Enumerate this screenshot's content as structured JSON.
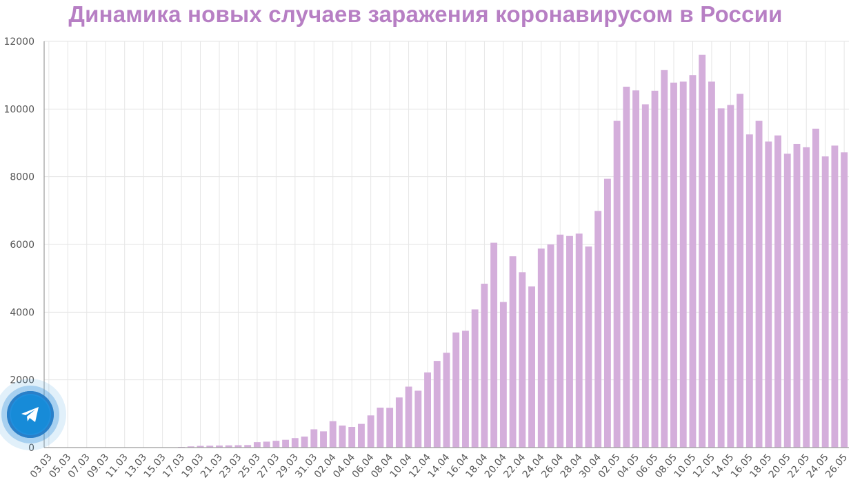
{
  "chart_data": {
    "type": "bar",
    "title": "Динамика новых случаев заражения коронавирусом в России",
    "xlabel": "",
    "ylabel": "",
    "ylim": [
      0,
      12000
    ],
    "yticks": [
      "0",
      "2000",
      "4000",
      "6000",
      "8000",
      "10000",
      "12000"
    ],
    "grid": true,
    "bar_color": "#d4aedb",
    "title_color": "#b77fc4",
    "categories": [
      "03.03",
      "04.03",
      "05.03",
      "06.03",
      "07.03",
      "08.03",
      "09.03",
      "10.03",
      "11.03",
      "12.03",
      "13.03",
      "14.03",
      "15.03",
      "16.03",
      "17.03",
      "18.03",
      "19.03",
      "20.03",
      "21.03",
      "22.03",
      "23.03",
      "24.03",
      "25.03",
      "26.03",
      "27.03",
      "28.03",
      "29.03",
      "30.03",
      "31.03",
      "01.04",
      "02.04",
      "03.04",
      "04.04",
      "05.04",
      "06.04",
      "07.04",
      "08.04",
      "09.04",
      "10.04",
      "11.04",
      "12.04",
      "13.04",
      "14.04",
      "15.04",
      "16.04",
      "17.04",
      "18.04",
      "19.04",
      "20.04",
      "21.04",
      "22.04",
      "23.04",
      "24.04",
      "25.04",
      "26.04",
      "27.04",
      "28.04",
      "29.04",
      "30.04",
      "01.05",
      "02.05",
      "03.05",
      "04.05",
      "05.05",
      "06.05",
      "07.05",
      "08.05",
      "09.05",
      "10.05",
      "11.05",
      "12.05",
      "13.05",
      "14.05",
      "15.05",
      "16.05",
      "17.05",
      "18.05",
      "19.05",
      "20.05",
      "21.05",
      "22.05",
      "23.05",
      "24.05",
      "25.05",
      "26.05"
    ],
    "x_tick_labels": [
      "03.03",
      "05.03",
      "07.03",
      "09.03",
      "11.03",
      "13.03",
      "15.03",
      "17.03",
      "19.03",
      "21.03",
      "23.03",
      "25.03",
      "27.03",
      "29.03",
      "31.03",
      "02.04",
      "04.04",
      "06.04",
      "08.04",
      "10.04",
      "12.04",
      "14.04",
      "16.04",
      "18.04",
      "20.04",
      "22.04",
      "24.04",
      "26.04",
      "28.04",
      "30.04",
      "02.05",
      "04.05",
      "06.05",
      "08.05",
      "10.05",
      "12.05",
      "14.05",
      "16.05",
      "18.05",
      "20.05",
      "22.05",
      "24.05",
      "26.05"
    ],
    "values": [
      0,
      0,
      0,
      0,
      0,
      0,
      0,
      0,
      0,
      0,
      0,
      0,
      0,
      0,
      20,
      35,
      50,
      55,
      60,
      65,
      70,
      75,
      160,
      175,
      200,
      230,
      280,
      325,
      540,
      480,
      780,
      650,
      610,
      700,
      950,
      1180,
      1175,
      1480,
      1800,
      1680,
      2220,
      2560,
      2800,
      3400,
      3450,
      4080,
      4840,
      6050,
      4300,
      5650,
      5180,
      4760,
      5880,
      6000,
      6290,
      6250,
      6320,
      5940,
      6990,
      7940,
      9650,
      10660,
      10550,
      10140,
      10540,
      11150,
      10780,
      10810,
      11000,
      11600,
      10810,
      10020,
      10120,
      10450,
      9250,
      9650,
      9040,
      9220,
      8680,
      8970,
      8870,
      9420,
      8600,
      8920,
      8720
    ]
  },
  "telegram_button": {
    "icon": "telegram-icon",
    "color": "#1f8fdd"
  }
}
